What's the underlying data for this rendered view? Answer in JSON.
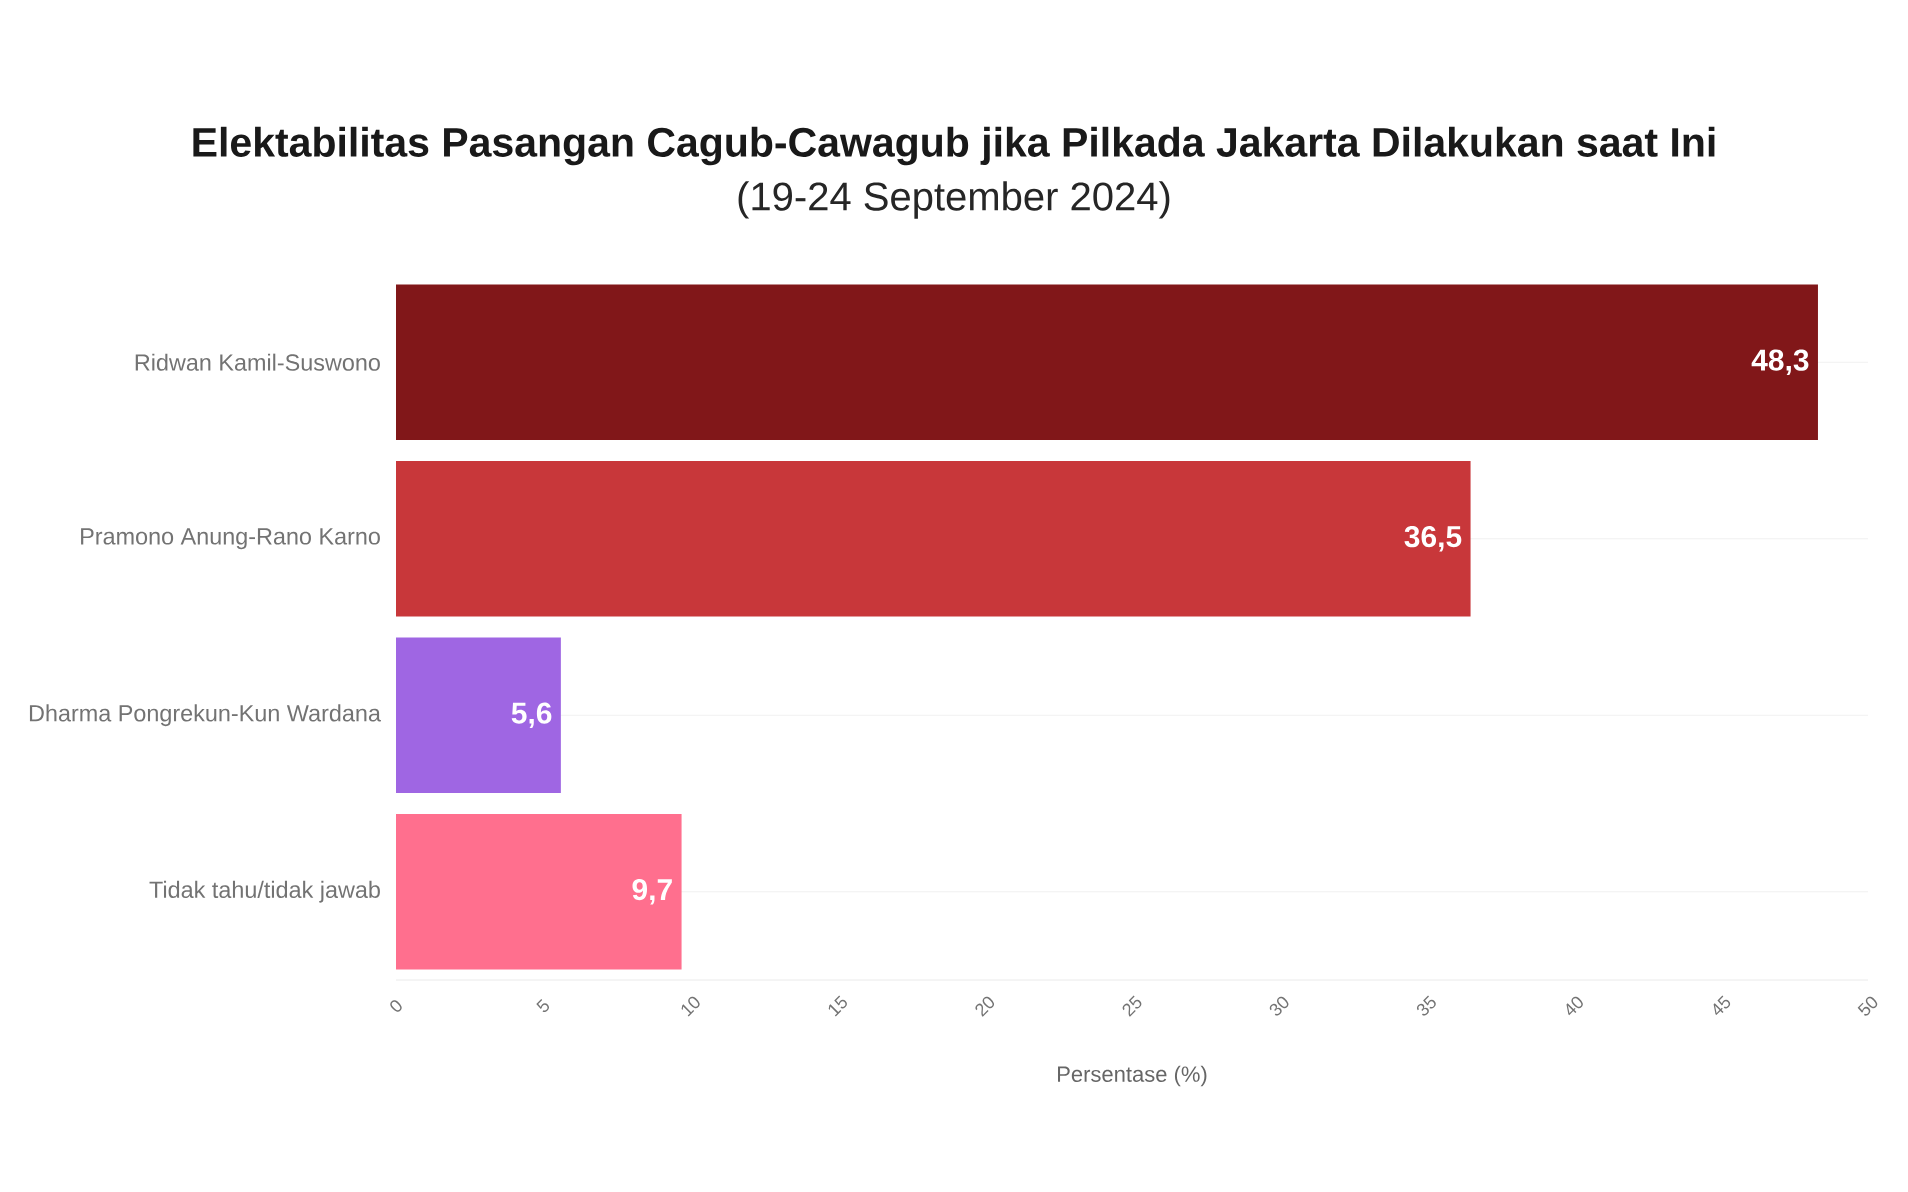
{
  "chart_data": {
    "type": "bar",
    "orientation": "horizontal",
    "title": "Elektabilitas Pasangan Cagub-Cawagub jika Pilkada Jakarta Dilakukan saat Ini",
    "subtitle": "(19-24 September 2024)",
    "xlabel": "Persentase (%)",
    "categories": [
      "Ridwan Kamil-Suswono",
      "Pramono Anung-Rano Karno",
      "Dharma Pongrekun-Kun Wardana",
      "Tidak tahu/tidak jawab"
    ],
    "values": [
      48.3,
      36.5,
      5.6,
      9.7
    ],
    "colors": [
      "#811719",
      "#c8373a",
      "#9f66e3",
      "#ff6f8e"
    ],
    "value_labels": [
      "48,3",
      "36,5",
      "5,6",
      "9,7"
    ],
    "xlim": [
      0,
      50
    ],
    "xticks": [
      0,
      5,
      10,
      15,
      20,
      25,
      30,
      35,
      40,
      45,
      50
    ],
    "grid": "y"
  }
}
